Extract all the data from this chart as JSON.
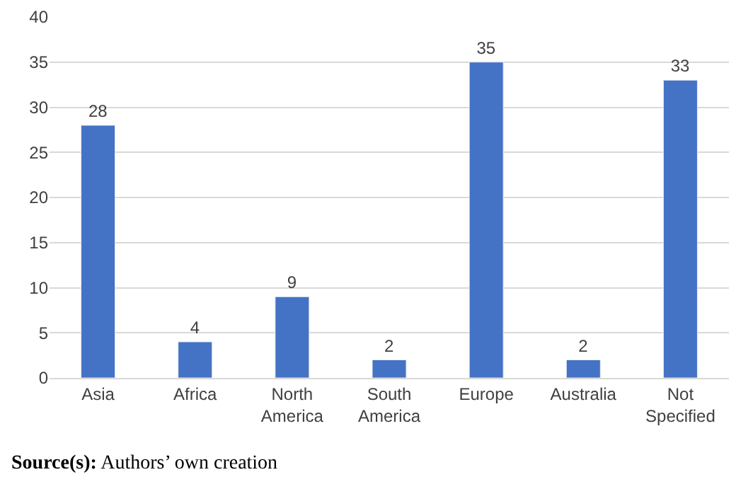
{
  "chart_data": {
    "type": "bar",
    "categories": [
      "Asia",
      "Africa",
      "North America",
      "South America",
      "Europe",
      "Australia",
      "Not Specified"
    ],
    "values": [
      28,
      4,
      9,
      2,
      35,
      2,
      33
    ],
    "color": "#4472c4",
    "ylim": [
      0,
      40
    ],
    "yticks": [
      0,
      5,
      10,
      15,
      20,
      25,
      30,
      35,
      40
    ],
    "grid": "y",
    "data_labels": true,
    "annotations": [
      "Source(s): Authors’ own creation"
    ]
  }
}
